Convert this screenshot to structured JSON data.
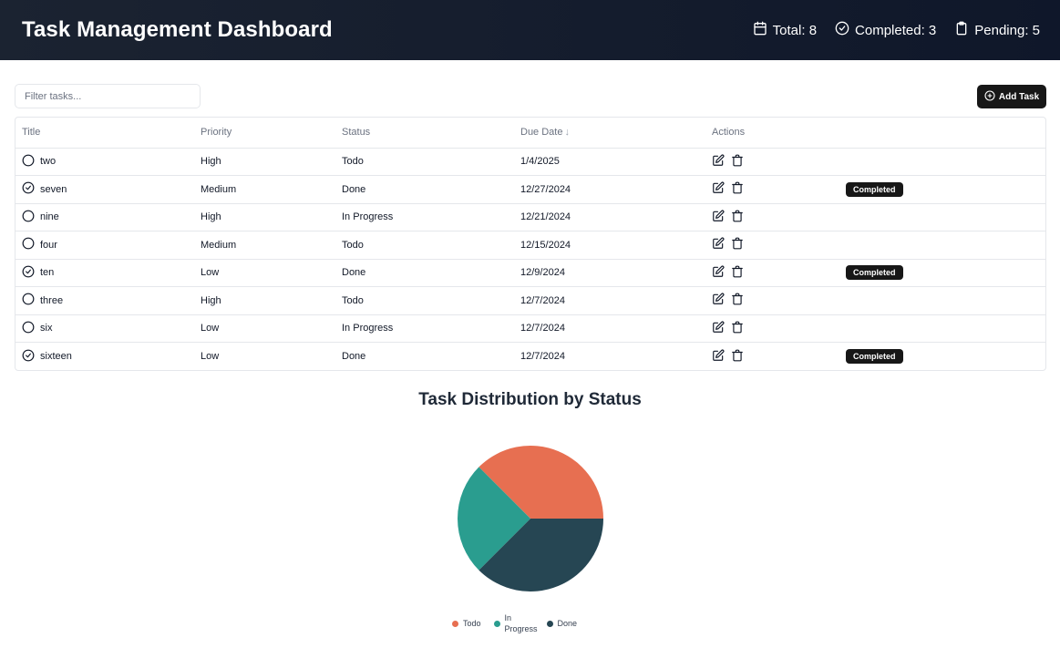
{
  "header": {
    "title": "Task Management Dashboard",
    "stats": {
      "total": "Total: 8",
      "completed": "Completed: 3",
      "pending": "Pending: 5"
    }
  },
  "toolbar": {
    "filter_placeholder": "Filter tasks...",
    "add_label": "Add Task"
  },
  "table": {
    "columns": [
      "Title",
      "Priority",
      "Status",
      "Due Date",
      "Actions"
    ],
    "sort_indicator": "↓",
    "rows": [
      {
        "title": "two",
        "priority": "High",
        "status": "Todo",
        "due": "1/4/2025",
        "done": false,
        "badge": ""
      },
      {
        "title": "seven",
        "priority": "Medium",
        "status": "Done",
        "due": "12/27/2024",
        "done": true,
        "badge": "Completed"
      },
      {
        "title": "nine",
        "priority": "High",
        "status": "In Progress",
        "due": "12/21/2024",
        "done": false,
        "badge": ""
      },
      {
        "title": "four",
        "priority": "Medium",
        "status": "Todo",
        "due": "12/15/2024",
        "done": false,
        "badge": ""
      },
      {
        "title": "ten",
        "priority": "Low",
        "status": "Done",
        "due": "12/9/2024",
        "done": true,
        "badge": "Completed"
      },
      {
        "title": "three",
        "priority": "High",
        "status": "Todo",
        "due": "12/7/2024",
        "done": false,
        "badge": ""
      },
      {
        "title": "six",
        "priority": "Low",
        "status": "In Progress",
        "due": "12/7/2024",
        "done": false,
        "badge": ""
      },
      {
        "title": "sixteen",
        "priority": "Low",
        "status": "Done",
        "due": "12/7/2024",
        "done": true,
        "badge": "Completed"
      }
    ]
  },
  "icons": {
    "total": "calendar-icon",
    "completed": "check-circle-icon",
    "pending": "clipboard-icon",
    "add": "plus-circle-icon",
    "edit": "edit-icon",
    "delete": "trash-icon",
    "task_open": "circle-icon",
    "task_done": "check-circle-icon"
  },
  "chart_data": {
    "type": "pie",
    "title": "Task Distribution by Status",
    "categories": [
      "Todo",
      "In Progress",
      "Done"
    ],
    "values": [
      3,
      2,
      3
    ],
    "colors": [
      "#e76f51",
      "#2a9d8f",
      "#264653"
    ],
    "legend": "bottom"
  }
}
